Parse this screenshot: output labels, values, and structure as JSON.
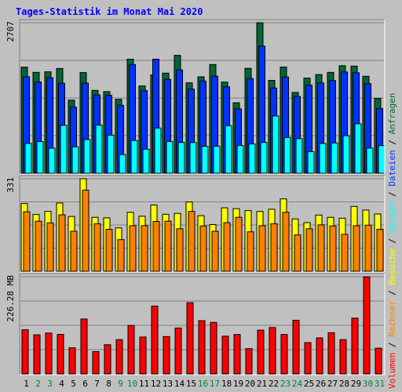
{
  "title": "Tages-Statistik im Monat Mai 2020",
  "colors": {
    "background": "#c0c0c0",
    "title": "#0000ff",
    "anfragen": "#006633",
    "dateien": "#0033ff",
    "seiten": "#00ffff",
    "besuche": "#ffff00",
    "rechner": "#ff8000",
    "volumen": "#ff0000",
    "weekend": "#008040",
    "weekday": "#000000"
  },
  "chart_data": [
    {
      "type": "bar",
      "panel": "top",
      "max_label": "2707",
      "ylim": [
        0,
        2707
      ],
      "grid": true,
      "categories": [
        "1",
        "2",
        "3",
        "4",
        "5",
        "6",
        "7",
        "8",
        "9",
        "10",
        "11",
        "12",
        "13",
        "14",
        "15",
        "16",
        "17",
        "18",
        "19",
        "20",
        "21",
        "22",
        "23",
        "24",
        "25",
        "26",
        "27",
        "28",
        "29",
        "30",
        "31"
      ],
      "series": [
        {
          "name": "Anfragen",
          "values": [
            1908,
            1814,
            1824,
            1884,
            1316,
            1810,
            1490,
            1467,
            1330,
            2052,
            1571,
            1768,
            1800,
            2121,
            1627,
            1734,
            1956,
            1640,
            1268,
            1887,
            2707,
            1671,
            1910,
            1453,
            1711,
            1775,
            1814,
            1934,
            1928,
            1744,
            1346
          ]
        },
        {
          "name": "Dateien",
          "values": [
            1737,
            1642,
            1717,
            1618,
            1188,
            1623,
            1410,
            1402,
            1222,
            1955,
            1489,
            2052,
            1689,
            1860,
            1513,
            1658,
            1745,
            1555,
            1159,
            1703,
            2286,
            1532,
            1732,
            1382,
            1583,
            1625,
            1666,
            1822,
            1808,
            1611,
            1164
          ]
        },
        {
          "name": "Seiten",
          "values": [
            537,
            570,
            451,
            861,
            475,
            606,
            866,
            685,
            335,
            588,
            433,
            813,
            573,
            554,
            553,
            483,
            486,
            856,
            499,
            528,
            554,
            1031,
            645,
            622,
            388,
            536,
            546,
            676,
            889,
            452,
            498
          ]
        }
      ]
    },
    {
      "type": "bar",
      "panel": "middle",
      "max_label": "331",
      "ylim": [
        0,
        331
      ],
      "grid": true,
      "categories": [
        "1",
        "2",
        "3",
        "4",
        "5",
        "6",
        "7",
        "8",
        "9",
        "10",
        "11",
        "12",
        "13",
        "14",
        "15",
        "16",
        "17",
        "18",
        "19",
        "20",
        "21",
        "22",
        "23",
        "24",
        "25",
        "26",
        "27",
        "28",
        "29",
        "30",
        "31"
      ],
      "series": [
        {
          "name": "Besuche",
          "values": [
            242,
            203,
            214,
            244,
            196,
            331,
            193,
            191,
            155,
            211,
            197,
            237,
            204,
            207,
            248,
            199,
            167,
            227,
            224,
            217,
            214,
            222,
            259,
            187,
            174,
            201,
            193,
            190,
            232,
            219,
            205
          ]
        },
        {
          "name": "Rechner",
          "values": [
            213,
            179,
            173,
            202,
            143,
            290,
            170,
            150,
            113,
            163,
            163,
            178,
            179,
            152,
            214,
            162,
            143,
            174,
            193,
            141,
            163,
            170,
            211,
            130,
            152,
            166,
            162,
            132,
            163,
            165,
            150
          ]
        }
      ]
    },
    {
      "type": "bar",
      "panel": "bottom",
      "max_label": "226.28 MB",
      "ylim": [
        0,
        226.28
      ],
      "grid": true,
      "categories": [
        "1",
        "2",
        "3",
        "4",
        "5",
        "6",
        "7",
        "8",
        "9",
        "10",
        "11",
        "12",
        "13",
        "14",
        "15",
        "16",
        "17",
        "18",
        "19",
        "20",
        "21",
        "22",
        "23",
        "24",
        "25",
        "26",
        "27",
        "28",
        "29",
        "30",
        "31"
      ],
      "series": [
        {
          "name": "Volumen",
          "values": [
            103,
            91,
            95,
            92,
            61,
            128,
            52,
            68,
            80,
            113,
            86,
            158,
            87,
            107,
            166,
            124,
            120,
            88,
            92,
            59,
            102,
            108,
            92,
            125,
            73,
            84,
            96,
            80,
            130,
            226.28,
            60
          ]
        }
      ]
    }
  ],
  "day_labels": [
    "1",
    "2",
    "3",
    "4",
    "5",
    "6",
    "7",
    "8",
    "9",
    "10",
    "11",
    "12",
    "13",
    "14",
    "15",
    "16",
    "17",
    "18",
    "19",
    "20",
    "21",
    "22",
    "23",
    "24",
    "25",
    "26",
    "27",
    "28",
    "29",
    "30",
    "31"
  ],
  "weekend_days": [
    "2",
    "3",
    "9",
    "10",
    "16",
    "17",
    "23",
    "24",
    "30",
    "31"
  ],
  "legend_right": [
    {
      "text": "Volumen",
      "color": "#ff0000"
    },
    {
      "text": " / ",
      "color": "#000000"
    },
    {
      "text": "Rechner",
      "color": "#ff8000"
    },
    {
      "text": " / ",
      "color": "#000000"
    },
    {
      "text": "Besuche",
      "color": "#ffff00"
    },
    {
      "text": " / ",
      "color": "#000000"
    },
    {
      "text": "Seiten",
      "color": "#00ffff"
    },
    {
      "text": " / ",
      "color": "#000000"
    },
    {
      "text": "Dateien",
      "color": "#0033ff"
    },
    {
      "text": " / ",
      "color": "#000000"
    },
    {
      "text": "Anfragen",
      "color": "#006633"
    }
  ]
}
